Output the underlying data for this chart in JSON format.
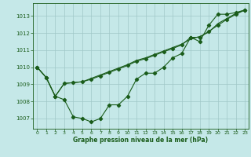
{
  "x": [
    0,
    1,
    2,
    3,
    4,
    5,
    6,
    7,
    8,
    9,
    10,
    11,
    12,
    13,
    14,
    15,
    16,
    17,
    18,
    19,
    20,
    21,
    22,
    23
  ],
  "line1": [
    1010.0,
    1009.4,
    1008.3,
    1008.1,
    1007.1,
    1007.0,
    1006.8,
    1007.0,
    1007.8,
    1007.8,
    1008.3,
    1009.3,
    1009.65,
    1009.65,
    1010.0,
    1010.55,
    1010.8,
    1011.75,
    1011.5,
    1012.45,
    1013.1,
    1013.1,
    1013.2,
    1013.35
  ],
  "line2": [
    1010.0,
    1009.4,
    1008.3,
    1009.05,
    1009.1,
    1009.15,
    1009.3,
    1009.5,
    1009.7,
    1009.9,
    1010.1,
    1010.35,
    1010.5,
    1010.7,
    1010.9,
    1011.1,
    1011.3,
    1011.75,
    1011.75,
    1012.1,
    1012.45,
    1012.8,
    1013.1,
    1013.35
  ],
  "line3": [
    1010.0,
    1009.4,
    1008.3,
    1009.05,
    1009.1,
    1009.15,
    1009.35,
    1009.55,
    1009.75,
    1009.95,
    1010.15,
    1010.4,
    1010.55,
    1010.75,
    1010.95,
    1011.15,
    1011.35,
    1011.65,
    1011.8,
    1012.05,
    1012.55,
    1012.85,
    1013.15,
    1013.35
  ],
  "bg_color": "#c5e8e8",
  "line_color": "#1a5c1a",
  "grid_color": "#a0c8c8",
  "xlabel": "Graphe pression niveau de la mer (hPa)",
  "yticks": [
    1007,
    1008,
    1009,
    1010,
    1011,
    1012,
    1013
  ],
  "xticks": [
    0,
    1,
    2,
    3,
    4,
    5,
    6,
    7,
    8,
    9,
    10,
    11,
    12,
    13,
    14,
    15,
    16,
    17,
    18,
    19,
    20,
    21,
    22,
    23
  ],
  "ylim": [
    1006.4,
    1013.75
  ],
  "xlim": [
    -0.5,
    23.4
  ]
}
